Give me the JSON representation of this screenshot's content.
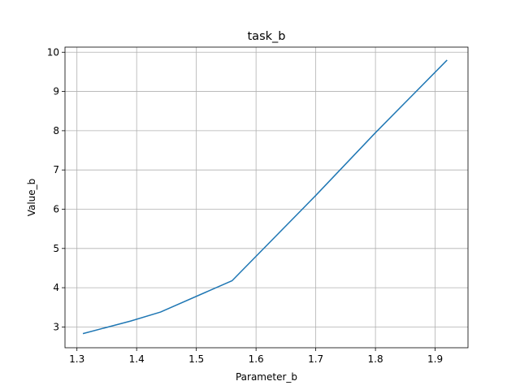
{
  "chart_data": {
    "type": "line",
    "title": "task_b",
    "xlabel": "Parameter_b",
    "ylabel": "Value_b",
    "xlim": [
      1.28,
      1.955
    ],
    "ylim": [
      2.47,
      10.13
    ],
    "xticks": [
      1.3,
      1.4,
      1.5,
      1.6,
      1.7,
      1.8,
      1.9
    ],
    "xtick_labels": [
      "1.3",
      "1.4",
      "1.5",
      "1.6",
      "1.7",
      "1.8",
      "1.9"
    ],
    "yticks": [
      3,
      4,
      5,
      6,
      7,
      8,
      9,
      10
    ],
    "ytick_labels": [
      "3",
      "4",
      "5",
      "6",
      "7",
      "8",
      "9",
      "10"
    ],
    "grid": true,
    "series": [
      {
        "color": "#1f77b4",
        "x": [
          1.31,
          1.39,
          1.44,
          1.56,
          1.7,
          1.8,
          1.92
        ],
        "y": [
          2.83,
          3.15,
          3.38,
          4.18,
          6.35,
          7.95,
          9.8
        ]
      }
    ]
  }
}
